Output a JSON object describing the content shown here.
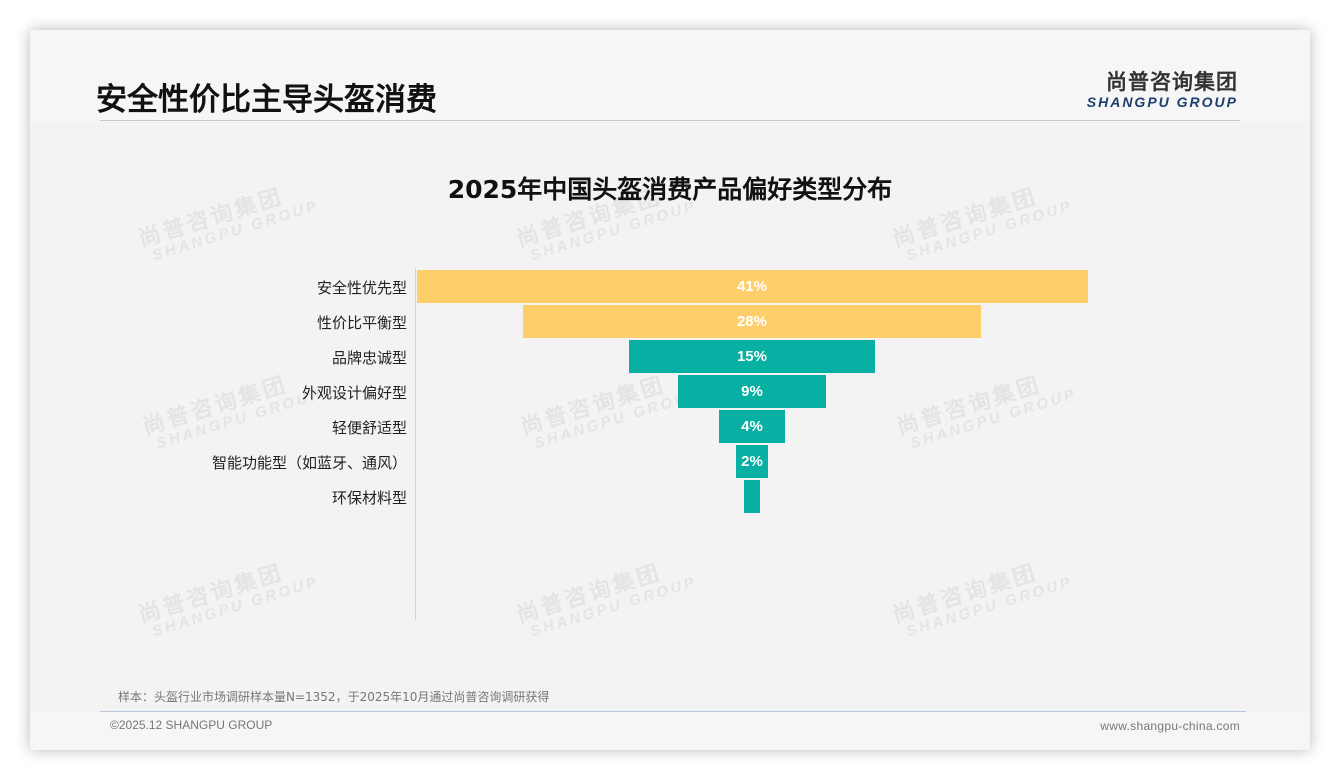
{
  "header": {
    "title": "安全性价比主导头盔消费",
    "logo_cn": "尚普咨询集团",
    "logo_en": "SHANGPU GROUP"
  },
  "watermark": {
    "cn": "尚普咨询集团",
    "en": "SHANGPU GROUP"
  },
  "colors": {
    "highlight": "#FECE6A",
    "base": "#08B0A3",
    "label_text": "#FFFFFF"
  },
  "chart_data": {
    "type": "bar",
    "subtype": "funnel",
    "title": "2025年中国头盔消费产品偏好类型分布",
    "xlabel": "",
    "ylabel": "",
    "unit": "%",
    "categories": [
      "安全性优先型",
      "性价比平衡型",
      "品牌忠诚型",
      "外观设计偏好型",
      "轻便舒适型",
      "智能功能型（如蓝牙、通风）",
      "环保材料型"
    ],
    "values": [
      41,
      28,
      15,
      9,
      4,
      2,
      1
    ],
    "data_labels": [
      "41%",
      "28%",
      "15%",
      "9%",
      "4%",
      "2%",
      ""
    ],
    "bar_colors": [
      "#FECE6A",
      "#FECE6A",
      "#08B0A3",
      "#08B0A3",
      "#08B0A3",
      "#08B0A3",
      "#08B0A3"
    ],
    "grid": false,
    "legend": null
  },
  "footer": {
    "sample_note": "样本：头盔行业市场调研样本量N=1352，于2025年10月通过尚普咨询调研获得",
    "copyright": "©2025.12 SHANGPU GROUP",
    "website": "www.shangpu-china.com"
  }
}
